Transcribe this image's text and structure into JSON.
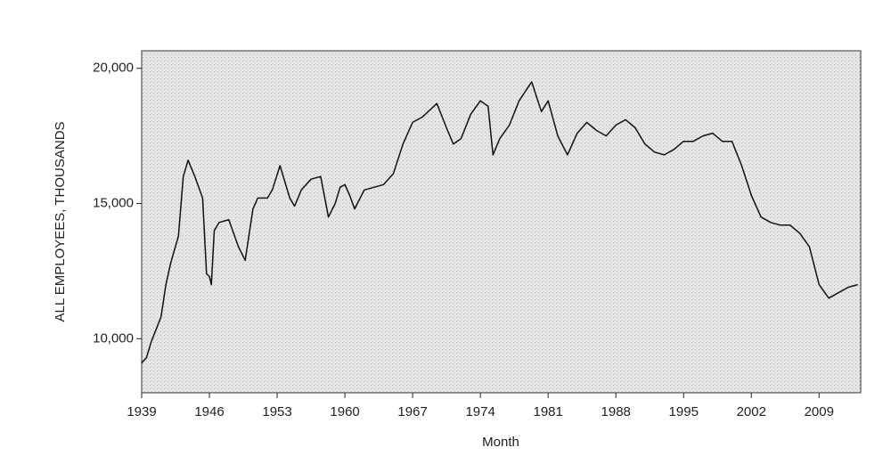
{
  "chart_data": {
    "type": "line",
    "x_label": "Month",
    "y_label": "ALL EMPLOYEES, THOUSANDS",
    "xlim": [
      1939,
      2013.3
    ],
    "ylim": [
      8000,
      20650
    ],
    "xticks": [
      1939,
      1946,
      1953,
      1960,
      1967,
      1974,
      1981,
      1988,
      1995,
      2002,
      2009
    ],
    "yticks": [
      {
        "value": 10000,
        "label": "10,000"
      },
      {
        "value": 15000,
        "label": "15,000"
      },
      {
        "value": 20000,
        "label": "20,000"
      }
    ],
    "series": [
      {
        "color": "#111111",
        "x": [
          1939,
          1939.5,
          1940,
          1941,
          1941.5,
          1942,
          1942.8,
          1943.3,
          1943.8,
          1944.5,
          1945.3,
          1945.7,
          1946.0,
          1946.2,
          1946.5,
          1947,
          1948,
          1949,
          1949.7,
          1950.5,
          1951,
          1952,
          1952.5,
          1953.3,
          1954.3,
          1954.8,
          1955.5,
          1956.5,
          1957.5,
          1958.3,
          1959,
          1959.5,
          1960,
          1960.5,
          1961,
          1962,
          1963,
          1964,
          1965,
          1966,
          1967,
          1968,
          1969.5,
          1970.5,
          1971.2,
          1972,
          1973,
          1974,
          1974.8,
          1975.3,
          1976,
          1977,
          1978,
          1979.3,
          1980.3,
          1981,
          1982,
          1983,
          1984,
          1985,
          1986,
          1987,
          1988,
          1989,
          1990,
          1991,
          1992,
          1993,
          1994,
          1995,
          1996,
          1997,
          1998,
          1999,
          2000,
          2001,
          2002,
          2003,
          2004,
          2005,
          2006,
          2007,
          2008,
          2009,
          2010,
          2011,
          2012,
          2013
        ],
        "values": [
          9100,
          9300,
          9900,
          10800,
          12000,
          12800,
          13800,
          16000,
          16600,
          16000,
          15200,
          12400,
          12300,
          12000,
          14000,
          14300,
          14400,
          13400,
          12900,
          14800,
          15200,
          15200,
          15500,
          16400,
          15200,
          14900,
          15500,
          15900,
          16000,
          14500,
          15000,
          15600,
          15700,
          15300,
          14800,
          15500,
          15600,
          15700,
          16100,
          17200,
          18000,
          18200,
          18700,
          17800,
          17200,
          17400,
          18300,
          18800,
          18600,
          16800,
          17400,
          17900,
          18800,
          19500,
          18400,
          18800,
          17500,
          16800,
          17600,
          18000,
          17700,
          17500,
          17900,
          18100,
          17800,
          17200,
          16900,
          16800,
          17000,
          17300,
          17300,
          17500,
          17600,
          17300,
          17300,
          16400,
          15300,
          14500,
          14300,
          14200,
          14200,
          13900,
          13400,
          12000,
          11500,
          11700,
          11900,
          12000
        ]
      }
    ]
  }
}
